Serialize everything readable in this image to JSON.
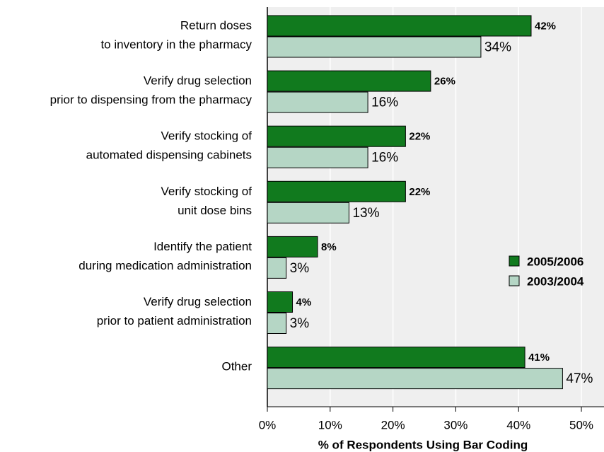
{
  "chart_data": {
    "type": "bar",
    "orientation": "horizontal",
    "xlabel": "% of Respondents Using Bar Coding",
    "categories": [
      "Return doses\nto inventory in the pharmacy",
      "Verify drug selection\nprior to dispensing from the pharmacy",
      "Verify stocking  of\nautomated dispensing cabinets",
      "Verify stocking of\nunit dose bins",
      "Identify the patient\nduring medication administration",
      "Verify drug selection\nprior to patient administration",
      "Other"
    ],
    "series": [
      {
        "name": "2005/2006",
        "color": "#117a1e",
        "values": [
          42,
          26,
          22,
          22,
          8,
          4,
          41
        ],
        "value_labels": [
          "42%",
          "26%",
          "22%",
          "22%",
          "8%",
          "4%",
          "41%"
        ]
      },
      {
        "name": "2003/2004",
        "color": "#b5d6c5",
        "values": [
          34,
          16,
          16,
          13,
          3,
          3,
          47
        ],
        "value_labels": [
          "34%",
          "16%",
          "16%",
          "13%",
          "3%",
          "3%",
          "47%"
        ]
      }
    ],
    "xlim": [
      0,
      53.6
    ],
    "xticks": [
      {
        "value": 0,
        "label": "0%"
      },
      {
        "value": 10,
        "label": "10%"
      },
      {
        "value": 20,
        "label": "20%"
      },
      {
        "value": 30,
        "label": "30%"
      },
      {
        "value": 40,
        "label": "40%"
      },
      {
        "value": 50,
        "label": "50%"
      }
    ],
    "grid": true,
    "legend": "right"
  }
}
